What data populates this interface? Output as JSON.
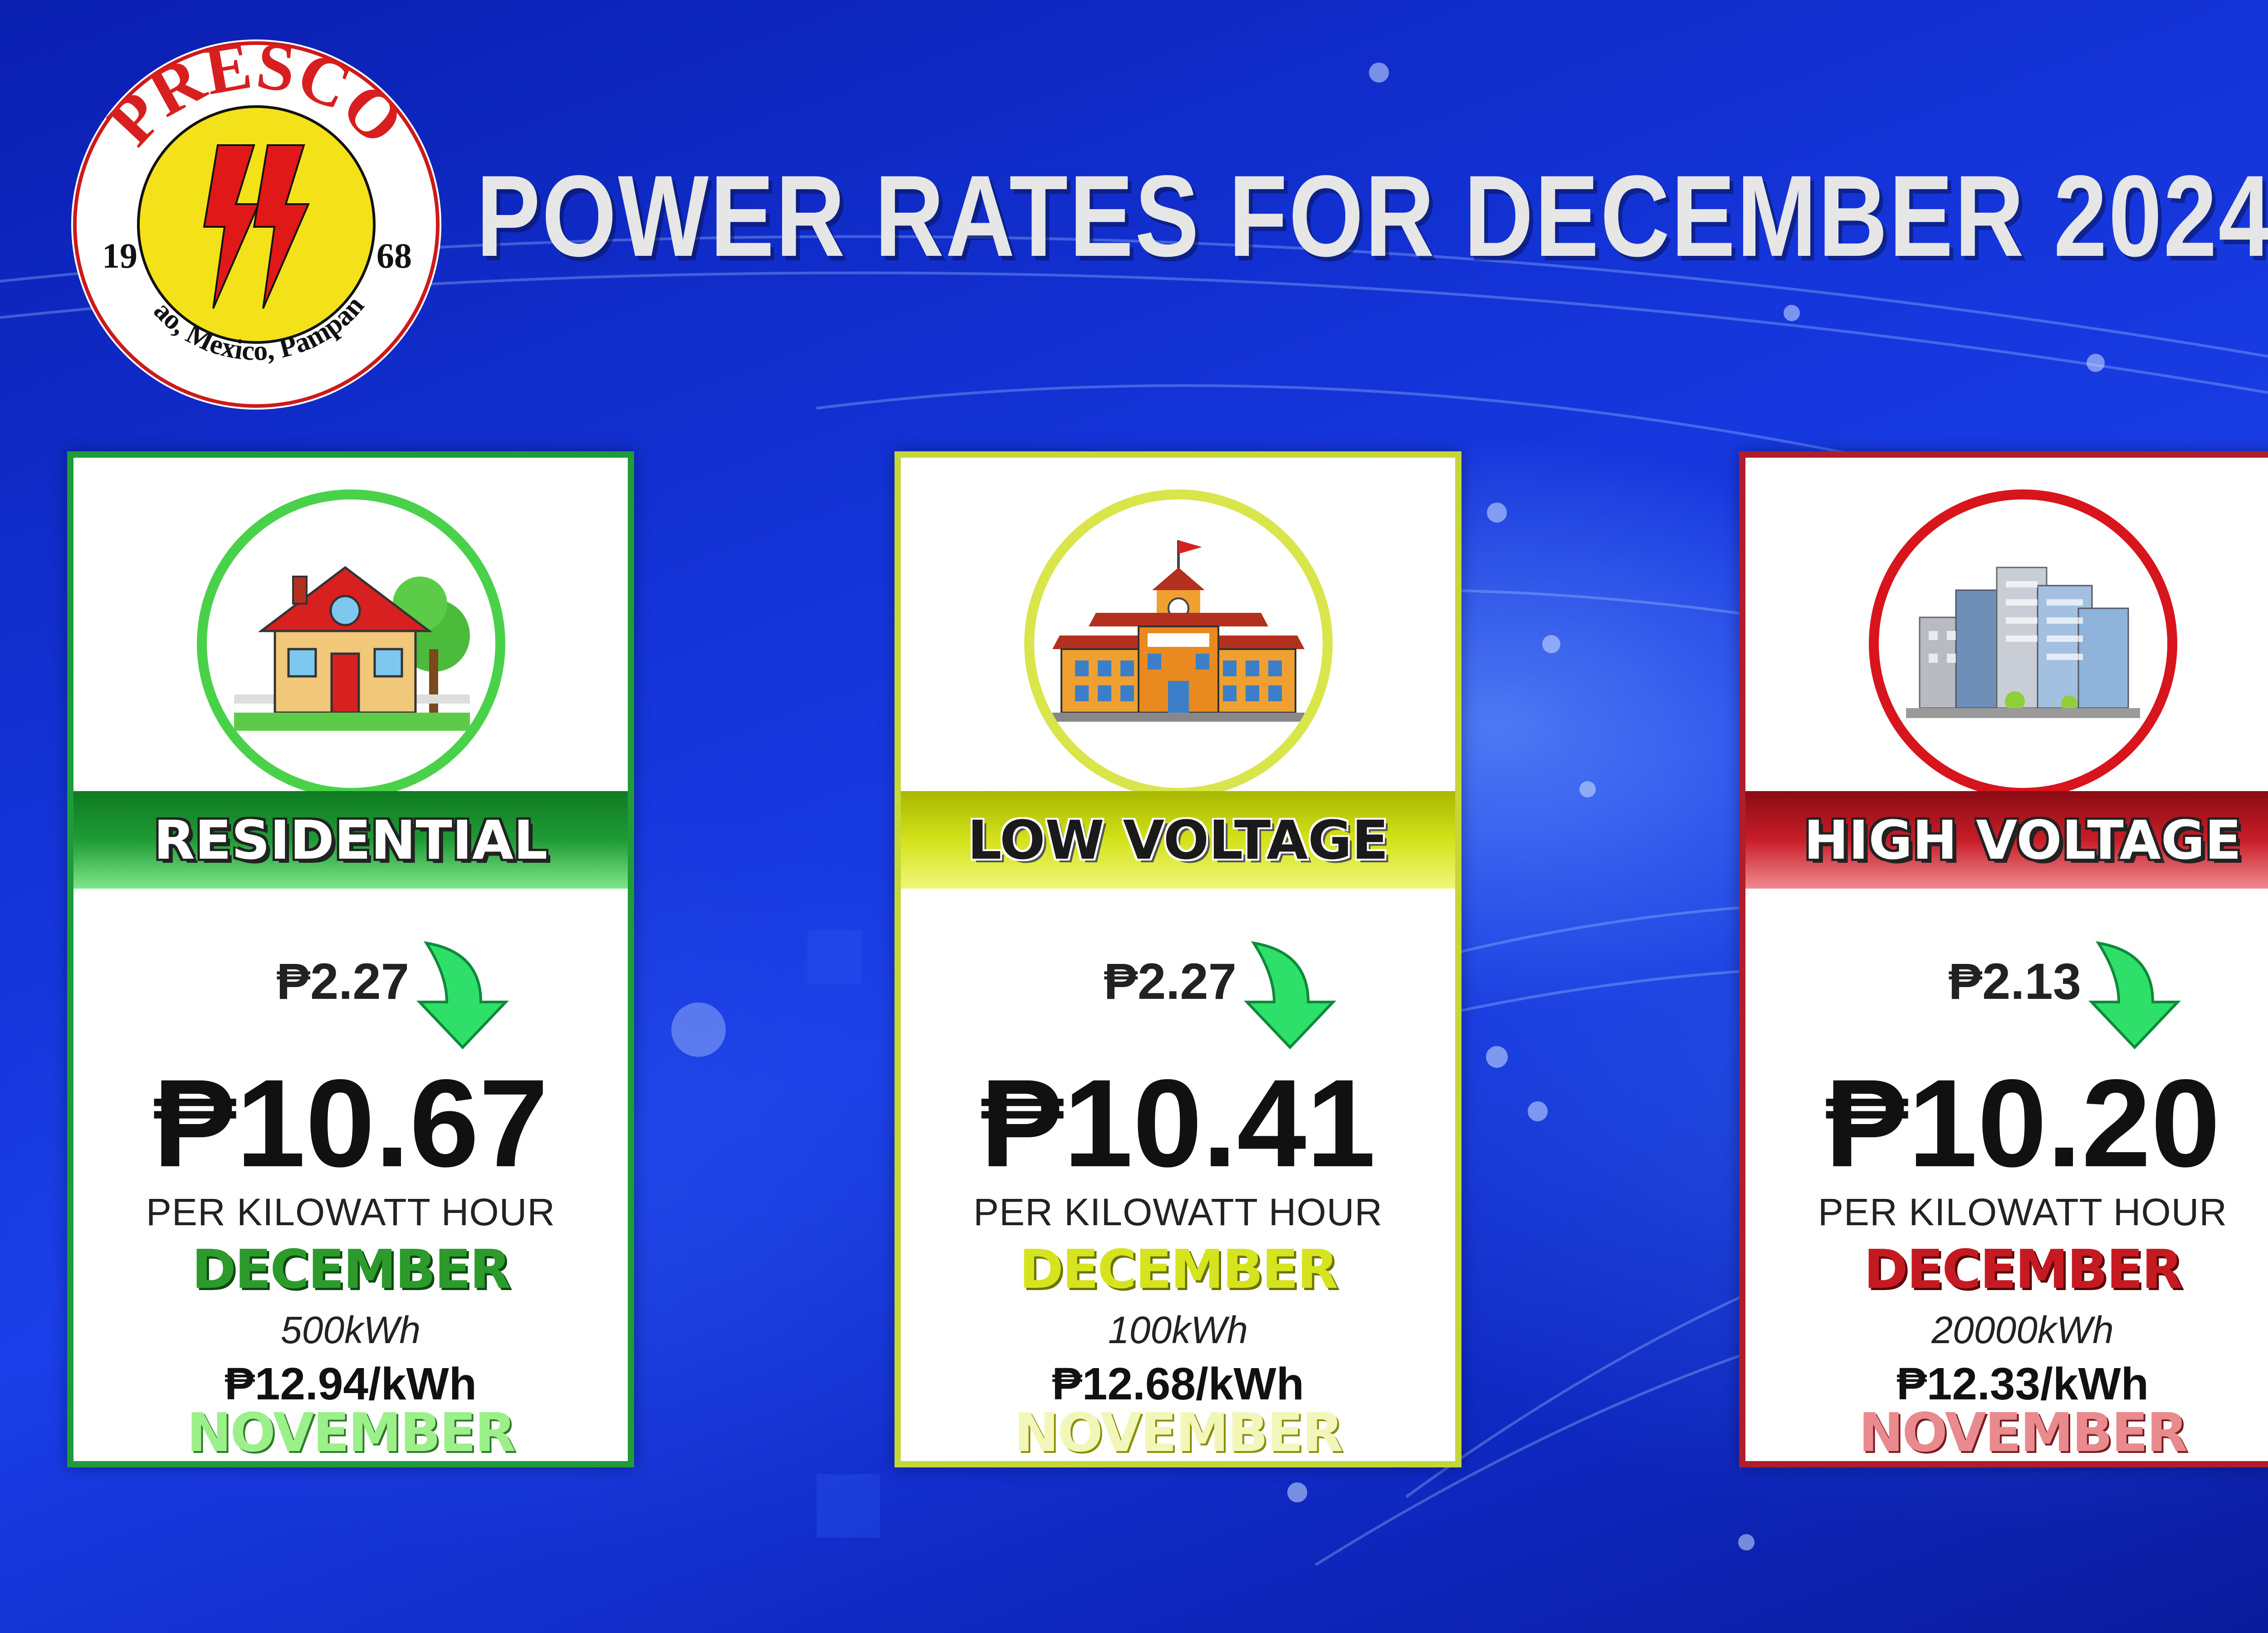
{
  "logo": {
    "name": "PRESCO",
    "year_left": "19",
    "year_right": "68",
    "location": "Anao, Mexico, Pampanga"
  },
  "title": "POWER RATES FOR DECEMBER 2024",
  "colors": {
    "residential": "#1f9b3a",
    "low_voltage": "#c5d63a",
    "high_voltage": "#b01d2c",
    "down_arrow": "#2ee06a"
  },
  "cards": [
    {
      "category": "RESIDENTIAL",
      "icon": "house-icon",
      "change": "₱2.27",
      "change_direction": "down",
      "rate": "₱10.67",
      "unit": "PER KILOWATT HOUR",
      "current_month": "DECEMBER",
      "consumption": "500kWh",
      "previous_rate": "₱12.94/kWh",
      "previous_month": "NOVEMBER"
    },
    {
      "category": "LOW VOLTAGE",
      "icon": "school-icon",
      "change": "₱2.27",
      "change_direction": "down",
      "rate": "₱10.41",
      "unit": "PER KILOWATT HOUR",
      "current_month": "DECEMBER",
      "consumption": "100kWh",
      "previous_rate": "₱12.68/kWh",
      "previous_month": "NOVEMBER"
    },
    {
      "category": "HIGH VOLTAGE",
      "icon": "buildings-icon",
      "change": "₱2.13",
      "change_direction": "down",
      "rate": "₱10.20",
      "unit": "PER KILOWATT HOUR",
      "current_month": "DECEMBER",
      "consumption": "20000kWh",
      "previous_rate": "₱12.33/kWh",
      "previous_month": "NOVEMBER"
    }
  ]
}
